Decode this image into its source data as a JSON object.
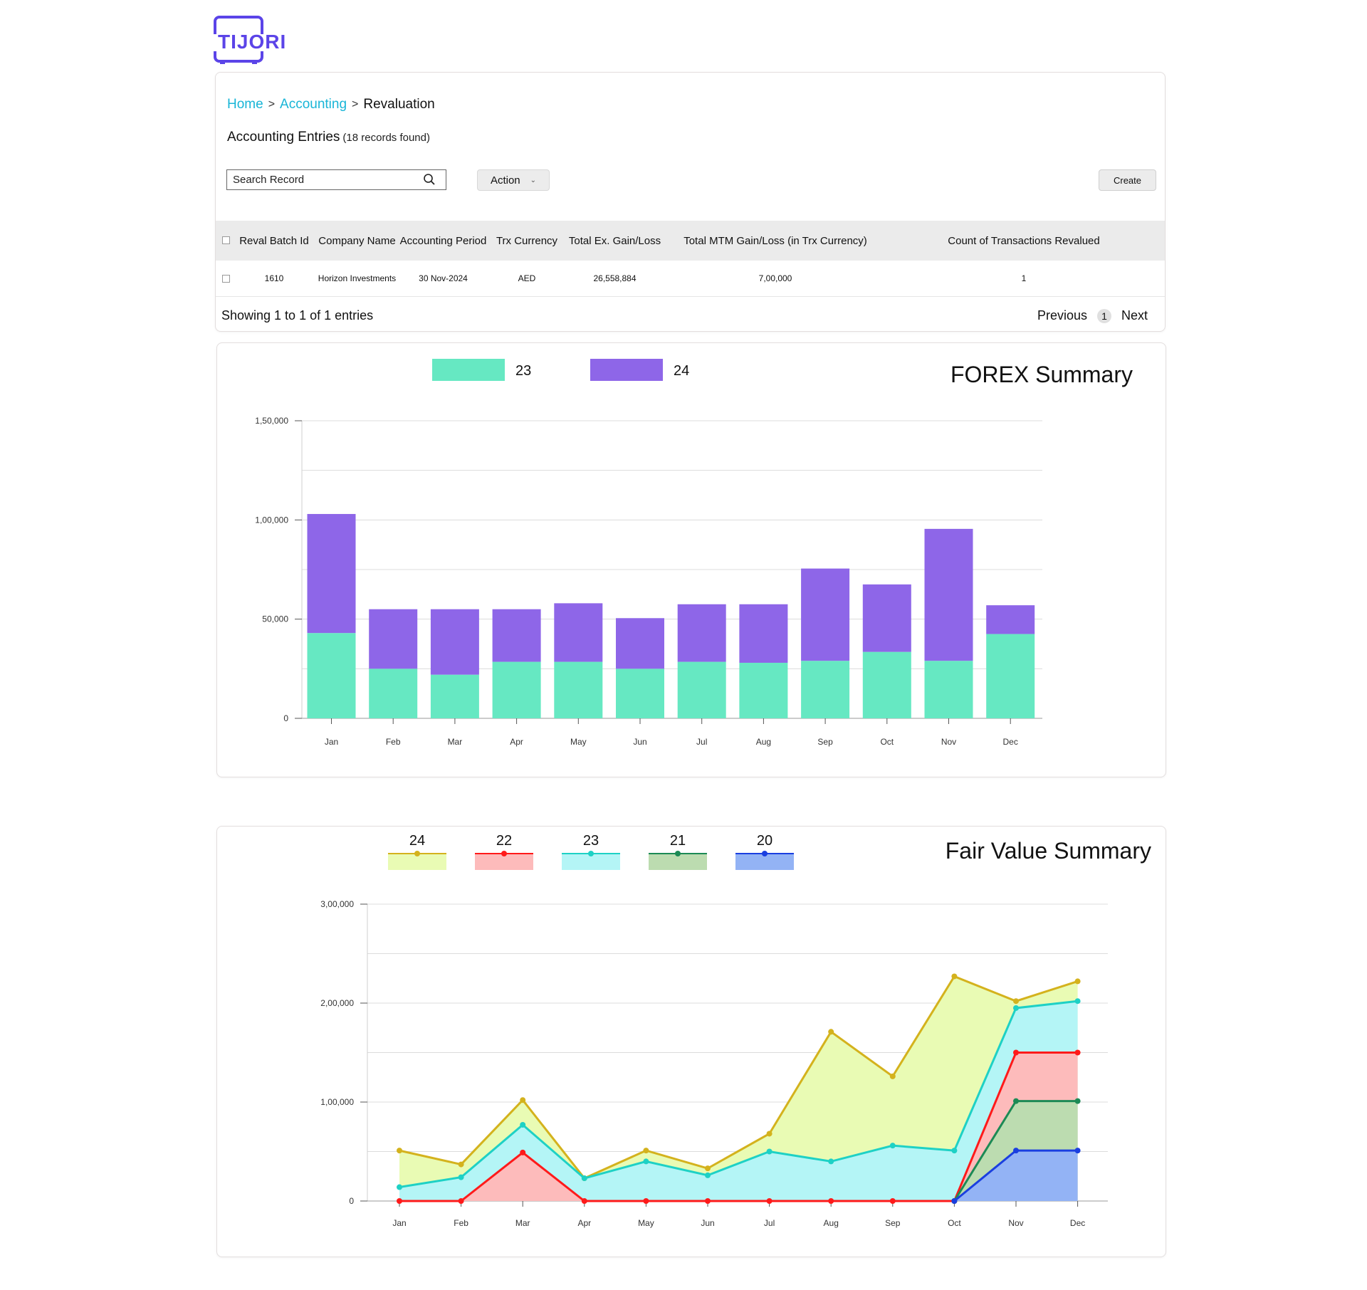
{
  "brand": {
    "name": "TIJORI",
    "color": "#5b44e8"
  },
  "breadcrumb": {
    "home": "Home",
    "section": "Accounting",
    "current": "Revaluation",
    "separator": ">"
  },
  "entries": {
    "title": "Accounting Entries",
    "count_text": "(18 records found)"
  },
  "search": {
    "placeholder": "Search Record",
    "value": ""
  },
  "toolbar": {
    "action_label": "Action",
    "create_label": "Create"
  },
  "table": {
    "columns": [
      "Reval Batch Id",
      "Company Name",
      "Accounting Period",
      "Trx Currency",
      "Total Ex. Gain/Loss",
      "Total MTM Gain/Loss (in Trx Currency)",
      "Count of Transactions Revalued"
    ],
    "rows": [
      [
        "1610",
        "Horizon Investments",
        "30 Nov-2024",
        "AED",
        "26,558,884",
        "7,00,000",
        "1"
      ]
    ]
  },
  "pagination": {
    "showing": "Showing 1 to 1 of 1 entries",
    "previous": "Previous",
    "page": "1",
    "next": "Next"
  },
  "chart_data": [
    {
      "type": "bar",
      "stacked": true,
      "title": "FOREX Summary",
      "categories": [
        "Jan",
        "Feb",
        "Mar",
        "Apr",
        "May",
        "Jun",
        "Jul",
        "Aug",
        "Sep",
        "Oct",
        "Nov",
        "Dec"
      ],
      "series": [
        {
          "name": "23",
          "color": "#66e8c2",
          "values": [
            43000,
            25000,
            22000,
            28500,
            28500,
            25000,
            28500,
            28000,
            29000,
            33500,
            29000,
            42500
          ]
        },
        {
          "name": "24",
          "color": "#8e66e8",
          "values": [
            60000,
            30000,
            33000,
            26500,
            29500,
            25500,
            29000,
            29500,
            46500,
            34000,
            66500,
            14500
          ]
        }
      ],
      "yticks": [
        "0",
        "50,000",
        "1,00,000",
        "1,50,000"
      ],
      "ylim": [
        0,
        150000
      ],
      "legend": "top-left",
      "grid": true
    },
    {
      "type": "area",
      "title": "Fair Value Summary",
      "categories": [
        "Jan",
        "Feb",
        "Mar",
        "Apr",
        "May",
        "Jun",
        "Jul",
        "Aug",
        "Sep",
        "Oct",
        "Nov",
        "Dec"
      ],
      "series": [
        {
          "name": "24",
          "color": "#d4b21d",
          "fill": "#e9fbb4",
          "values": [
            51000,
            37000,
            102000,
            23000,
            51000,
            33000,
            68000,
            171000,
            126000,
            227000,
            202000,
            222000
          ]
        },
        {
          "name": "23",
          "color": "#1ed1c5",
          "fill": "#b4f5f6",
          "values": [
            14000,
            24000,
            77000,
            23000,
            40000,
            26000,
            50000,
            40000,
            56000,
            51000,
            195000,
            202000
          ]
        },
        {
          "name": "22",
          "color": "#ff1a1a",
          "fill": "#fdbbbb",
          "values": [
            0,
            0,
            49000,
            0,
            0,
            0,
            0,
            0,
            0,
            0,
            150000,
            150000
          ]
        },
        {
          "name": "21",
          "color": "#1c8a55",
          "fill": "#bcdcb0",
          "values": [
            null,
            null,
            null,
            null,
            null,
            null,
            null,
            null,
            null,
            0,
            101000,
            101000
          ]
        },
        {
          "name": "20",
          "color": "#1a3fe0",
          "fill": "#93b3f5",
          "values": [
            null,
            null,
            null,
            null,
            null,
            null,
            null,
            null,
            null,
            0,
            51000,
            51000
          ]
        }
      ],
      "legend_order": [
        "24",
        "22",
        "23",
        "21",
        "20"
      ],
      "yticks": [
        "0",
        "1,00,000",
        "2,00,000",
        "3,00,000"
      ],
      "ylim": [
        0,
        300000
      ],
      "legend": "top-left",
      "grid": true
    }
  ]
}
